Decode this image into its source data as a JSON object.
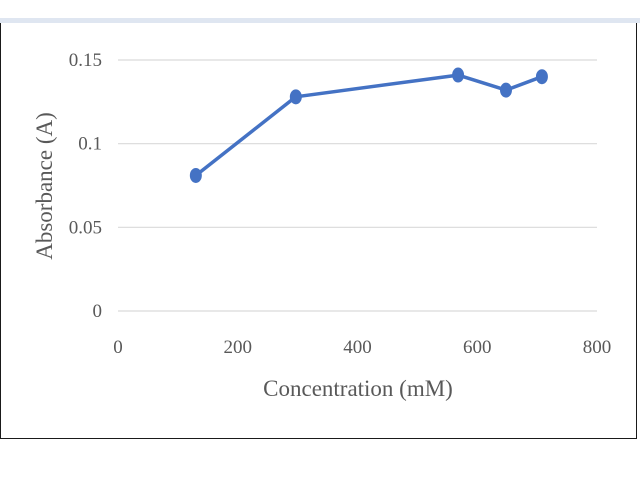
{
  "chart_data": {
    "type": "line",
    "title": "",
    "xlabel": "Concentration (mM)",
    "ylabel": "Absorbance (A)",
    "xlim": [
      0,
      800
    ],
    "ylim": [
      0,
      0.15
    ],
    "x_ticks": [
      0,
      200,
      400,
      600,
      800
    ],
    "x_tick_labels": [
      "0",
      "200",
      "400",
      "600",
      "800"
    ],
    "y_ticks": [
      0,
      0.05,
      0.1,
      0.15
    ],
    "y_tick_labels": [
      "0",
      "0.05",
      "0.1",
      "0.15"
    ],
    "grid": "horizontal",
    "legend": "none",
    "series": [
      {
        "color": "#4472c4",
        "points": [
          {
            "x": 130,
            "y": 0.081
          },
          {
            "x": 297,
            "y": 0.128
          },
          {
            "x": 568,
            "y": 0.141
          },
          {
            "x": 648,
            "y": 0.132
          },
          {
            "x": 708,
            "y": 0.14
          }
        ]
      }
    ]
  }
}
